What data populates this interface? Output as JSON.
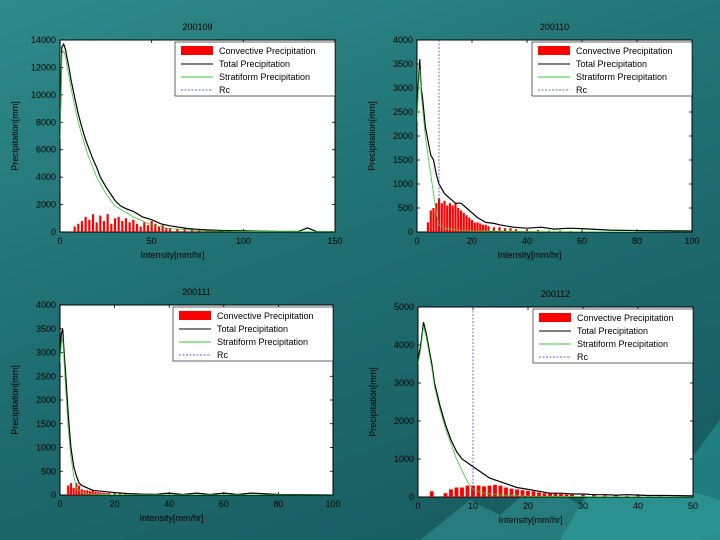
{
  "legend_labels": [
    "Convective Precipitation",
    "Total Precipitation",
    "Stratiform Precipitation",
    "Rc"
  ],
  "colors": {
    "convective": "#ff0000",
    "total": "#000000",
    "stratiform": "#33cc33",
    "rc": "#3333cc"
  },
  "chart_data": [
    {
      "type": "bar",
      "title": "200109",
      "xlabel": "Intensity[mm/hr]",
      "ylabel": "Precipitation[mm]",
      "xlim": [
        0,
        150
      ],
      "ylim": [
        0,
        14000
      ],
      "xticks": [
        0,
        50,
        100,
        150
      ],
      "yticks": [
        0,
        2000,
        4000,
        6000,
        8000,
        10000,
        12000,
        14000
      ],
      "rc": null,
      "legend_position": "top-right",
      "series": [
        {
          "name": "Total Precipitation",
          "kind": "line",
          "x": [
            0,
            1,
            2,
            3,
            4,
            5,
            6,
            8,
            10,
            12,
            14,
            16,
            18,
            20,
            22,
            25,
            28,
            30,
            33,
            36,
            40,
            45,
            50,
            55,
            60,
            65,
            70,
            75,
            80,
            90,
            100,
            110,
            120,
            130,
            135,
            140,
            150
          ],
          "y": [
            7000,
            13500,
            13700,
            13300,
            12600,
            11900,
            11100,
            9800,
            8600,
            7600,
            6700,
            6000,
            5300,
            4700,
            4000,
            3300,
            2700,
            2300,
            1900,
            1700,
            1500,
            1100,
            900,
            600,
            450,
            350,
            250,
            200,
            150,
            100,
            80,
            60,
            40,
            40,
            300,
            30,
            20
          ]
        },
        {
          "name": "Stratiform Precipitation",
          "kind": "line",
          "x": [
            0,
            1,
            2,
            3,
            4,
            6,
            8,
            10,
            12,
            15,
            20,
            25,
            30,
            40,
            50,
            60,
            80,
            100,
            150
          ],
          "y": [
            6800,
            13000,
            13200,
            12800,
            12000,
            10500,
            9200,
            8000,
            7000,
            5700,
            4000,
            2800,
            1900,
            1100,
            500,
            250,
            80,
            40,
            10
          ]
        },
        {
          "name": "Convective Precipitation",
          "kind": "bar",
          "x": [
            8,
            10,
            12,
            14,
            16,
            18,
            20,
            22,
            24,
            26,
            28,
            30,
            32,
            34,
            36,
            38,
            40,
            42,
            44,
            46,
            48,
            50,
            52,
            54,
            56,
            58,
            60,
            64,
            68,
            72,
            76,
            80,
            85,
            90,
            95,
            100,
            110,
            120,
            130,
            135
          ],
          "y": [
            400,
            600,
            800,
            1100,
            900,
            1300,
            700,
            1200,
            800,
            1300,
            600,
            1000,
            1100,
            800,
            1000,
            700,
            900,
            600,
            400,
            700,
            500,
            800,
            600,
            400,
            500,
            300,
            300,
            250,
            250,
            200,
            200,
            150,
            150,
            100,
            100,
            80,
            60,
            40,
            30,
            50
          ]
        }
      ]
    },
    {
      "type": "bar",
      "title": "200110",
      "xlabel": "Intensity[mm/hr]",
      "ylabel": "Precipitation[mm]",
      "xlim": [
        0,
        100
      ],
      "ylim": [
        0,
        4000
      ],
      "xticks": [
        0,
        20,
        40,
        60,
        80,
        100
      ],
      "yticks": [
        0,
        500,
        1000,
        1500,
        2000,
        2500,
        3000,
        3500,
        4000
      ],
      "rc": 8,
      "legend_position": "top-right",
      "series": [
        {
          "name": "Total Precipitation",
          "kind": "line",
          "x": [
            0,
            0.5,
            1,
            1.5,
            2,
            3,
            4,
            5,
            6,
            7,
            8,
            9,
            10,
            12,
            14,
            16,
            18,
            20,
            22,
            25,
            28,
            30,
            35,
            40,
            45,
            50,
            55,
            60,
            70,
            80,
            100
          ],
          "y": [
            2500,
            3100,
            3600,
            3000,
            2800,
            2200,
            1900,
            1600,
            1500,
            1200,
            1000,
            900,
            800,
            700,
            600,
            600,
            500,
            400,
            300,
            200,
            180,
            150,
            100,
            80,
            100,
            60,
            80,
            70,
            40,
            30,
            20
          ]
        },
        {
          "name": "Stratiform Precipitation",
          "kind": "line",
          "x": [
            0,
            0.5,
            1,
            1.5,
            2,
            3,
            4,
            5,
            6,
            7,
            8,
            10,
            15,
            20,
            40,
            60,
            100
          ],
          "y": [
            2300,
            3000,
            3400,
            2900,
            2600,
            2000,
            1600,
            1200,
            800,
            400,
            150,
            80,
            40,
            20,
            10,
            5,
            0
          ]
        },
        {
          "name": "Convective Precipitation",
          "kind": "bar",
          "x": [
            4,
            5,
            6,
            7,
            8,
            9,
            10,
            11,
            12,
            13,
            14,
            15,
            16,
            17,
            18,
            19,
            20,
            21,
            22,
            23,
            24,
            25,
            26,
            28,
            30,
            32,
            34,
            36,
            40,
            44,
            48,
            52,
            56,
            60
          ],
          "y": [
            200,
            450,
            500,
            600,
            700,
            600,
            650,
            550,
            600,
            550,
            600,
            500,
            450,
            400,
            350,
            300,
            250,
            200,
            200,
            180,
            150,
            150,
            120,
            100,
            100,
            80,
            80,
            60,
            50,
            40,
            30,
            30,
            20,
            20
          ]
        }
      ]
    },
    {
      "type": "bar",
      "title": "200111",
      "xlabel": "Intensity[mm/hr]",
      "ylabel": "Precipitation[mm]",
      "xlim": [
        0,
        100
      ],
      "ylim": [
        0,
        4000
      ],
      "xticks": [
        0,
        20,
        40,
        60,
        80,
        100
      ],
      "yticks": [
        0,
        500,
        1000,
        1500,
        2000,
        2500,
        3000,
        3500,
        4000
      ],
      "rc": null,
      "legend_position": "top-right",
      "series": [
        {
          "name": "Total Precipitation",
          "kind": "line",
          "x": [
            0,
            0.5,
            1,
            1.5,
            2,
            3,
            4,
            5,
            6,
            7,
            8,
            10,
            12,
            15,
            20,
            25,
            30,
            35,
            40,
            45,
            50,
            55,
            60,
            65,
            70,
            80,
            100
          ],
          "y": [
            3000,
            3400,
            3500,
            3000,
            2600,
            1700,
            1000,
            600,
            400,
            250,
            200,
            150,
            100,
            80,
            50,
            30,
            20,
            15,
            40,
            10,
            40,
            10,
            40,
            10,
            40,
            10,
            5
          ]
        },
        {
          "name": "Stratiform Precipitation",
          "kind": "line",
          "x": [
            0,
            0.5,
            1,
            1.5,
            2,
            3,
            4,
            5,
            6,
            8,
            10,
            20,
            100
          ],
          "y": [
            2800,
            3200,
            3300,
            2800,
            2300,
            1400,
            800,
            400,
            150,
            50,
            20,
            5,
            0
          ]
        },
        {
          "name": "Convective Precipitation",
          "kind": "bar",
          "x": [
            3,
            4,
            5,
            6,
            7,
            8,
            9,
            10,
            11,
            12,
            13,
            14,
            15,
            16,
            17,
            18,
            20,
            22,
            24
          ],
          "y": [
            200,
            250,
            150,
            250,
            200,
            120,
            100,
            100,
            80,
            90,
            70,
            60,
            50,
            50,
            40,
            40,
            30,
            30,
            20
          ]
        }
      ]
    },
    {
      "type": "bar",
      "title": "200112",
      "xlabel": "Intensity[mm/hr]",
      "ylabel": "Precipitation[mm]",
      "xlim": [
        0,
        50
      ],
      "ylim": [
        0,
        5000
      ],
      "xticks": [
        0,
        10,
        20,
        30,
        40,
        50
      ],
      "yticks": [
        0,
        1000,
        2000,
        3000,
        4000,
        5000
      ],
      "rc": 10,
      "legend_position": "top-right",
      "series": [
        {
          "name": "Total Precipitation",
          "kind": "line",
          "x": [
            0,
            0.5,
            1,
            1.5,
            2,
            2.5,
            3,
            4,
            5,
            6,
            7,
            8,
            9,
            10,
            11,
            12,
            13,
            14,
            15,
            16,
            18,
            20,
            22,
            24,
            26,
            28,
            30,
            32,
            34,
            36,
            38,
            40,
            42,
            45,
            50
          ],
          "y": [
            3600,
            4000,
            4600,
            4300,
            3900,
            3500,
            3000,
            2400,
            1900,
            1500,
            1200,
            1000,
            900,
            800,
            700,
            600,
            500,
            450,
            400,
            350,
            250,
            200,
            150,
            100,
            100,
            80,
            80,
            60,
            60,
            50,
            60,
            50,
            40,
            40,
            30
          ]
        },
        {
          "name": "Stratiform Precipitation",
          "kind": "line",
          "x": [
            0,
            0.5,
            1,
            1.5,
            2,
            2.5,
            3,
            4,
            5,
            6,
            7,
            8,
            9,
            10,
            12,
            15,
            20,
            30,
            50
          ],
          "y": [
            3500,
            3900,
            4500,
            4200,
            3800,
            3400,
            2900,
            2300,
            1800,
            1400,
            1000,
            700,
            400,
            200,
            100,
            50,
            20,
            10,
            0
          ]
        },
        {
          "name": "Convective Precipitation",
          "kind": "bar",
          "x": [
            2.5,
            5,
            6,
            7,
            8,
            9,
            10,
            11,
            12,
            13,
            14,
            15,
            16,
            17,
            18,
            19,
            20,
            21,
            22,
            23,
            24,
            25,
            26,
            27,
            28,
            30,
            32,
            34,
            36,
            38,
            40,
            42,
            44
          ],
          "y": [
            150,
            100,
            200,
            250,
            250,
            300,
            300,
            300,
            280,
            300,
            320,
            300,
            250,
            220,
            200,
            180,
            160,
            150,
            120,
            100,
            100,
            90,
            80,
            70,
            60,
            50,
            50,
            40,
            40,
            30,
            30,
            20,
            20
          ]
        }
      ]
    }
  ]
}
